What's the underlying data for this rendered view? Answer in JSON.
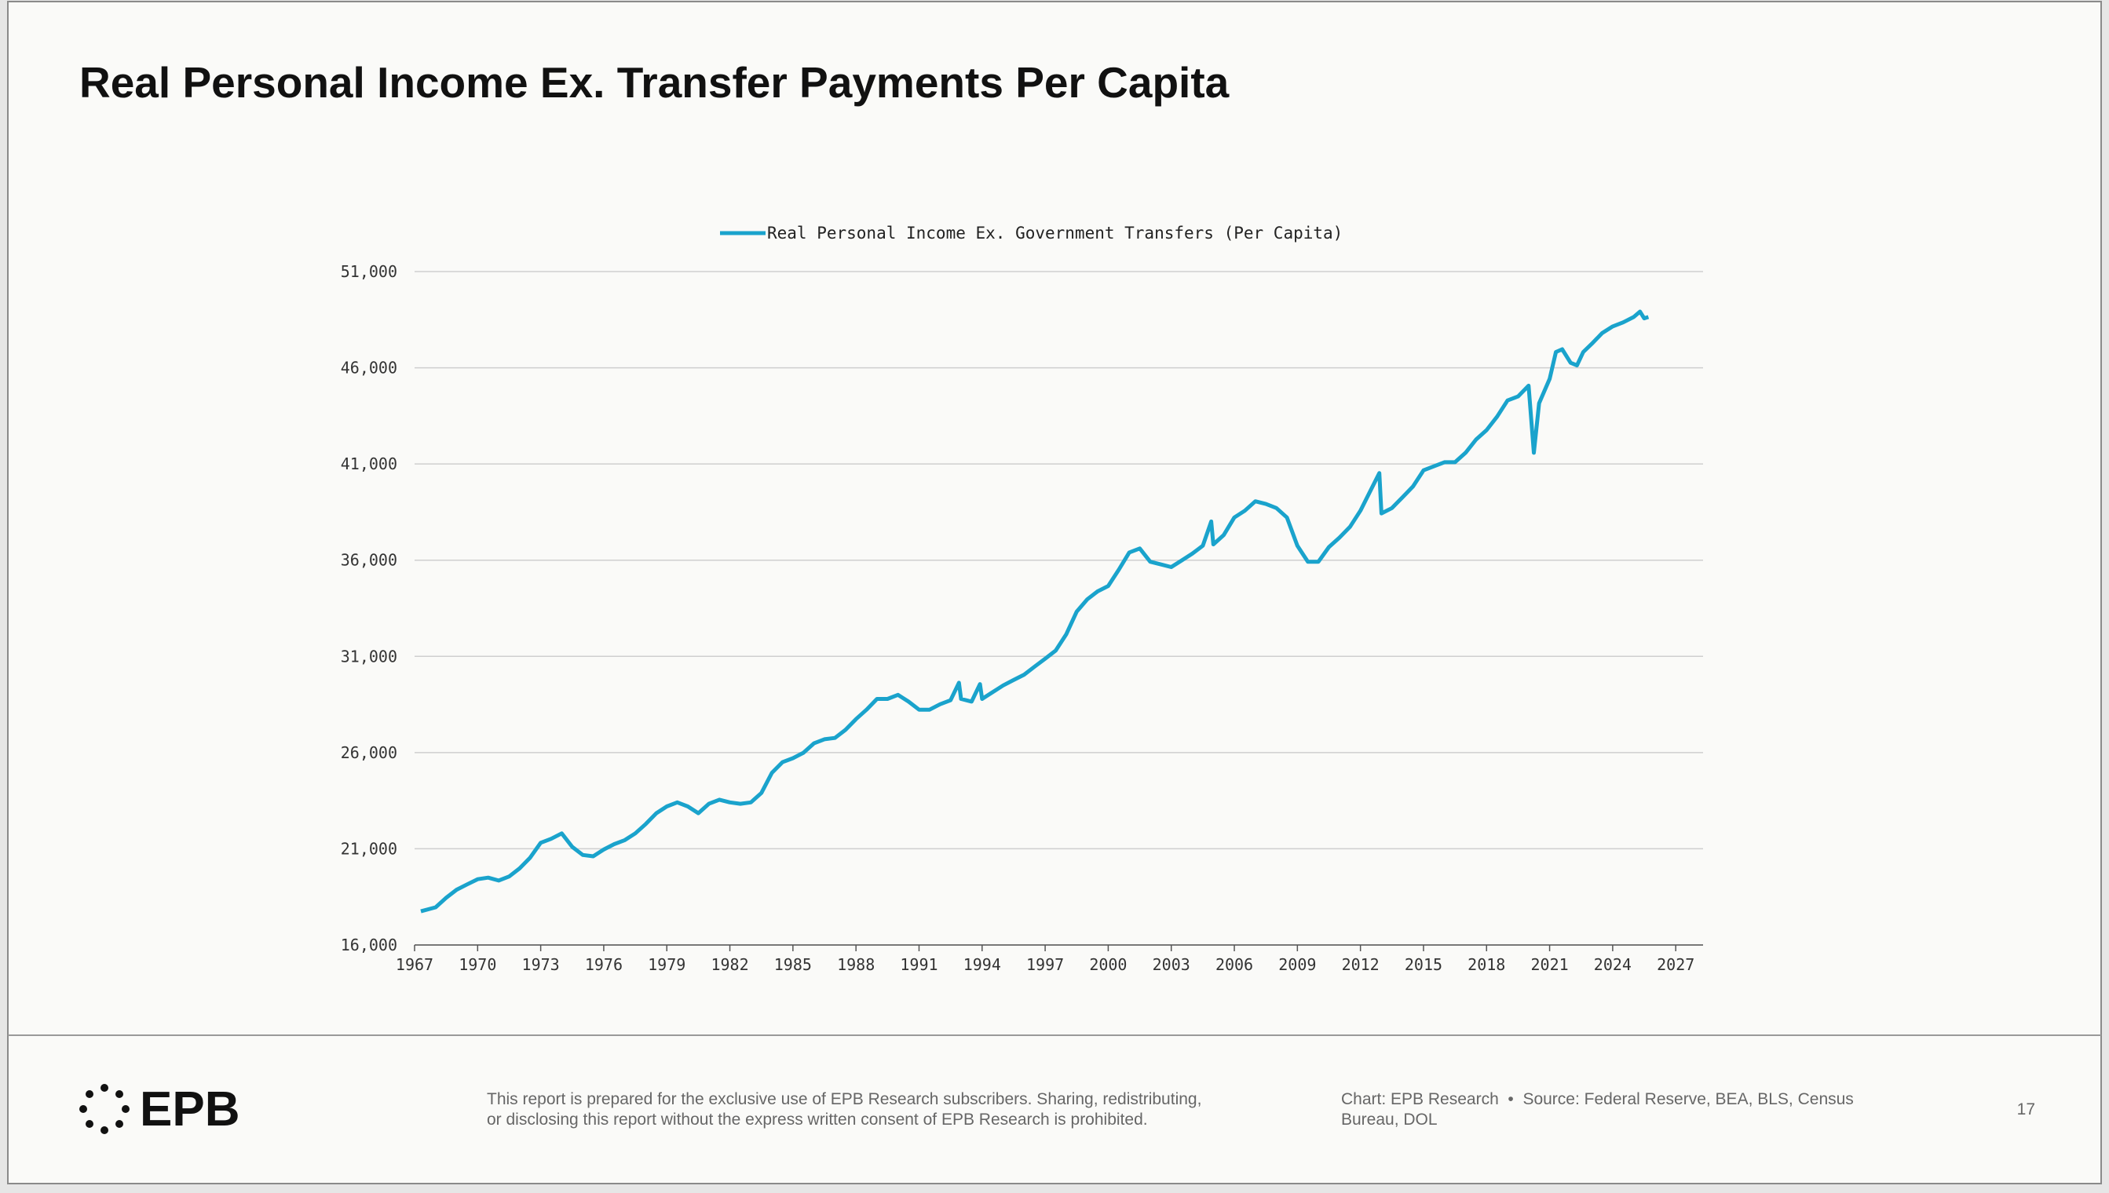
{
  "chart_data": {
    "type": "line",
    "title": "Real Personal Income Ex. Transfer Payments Per Capita",
    "x": [
      1967.3,
      1968,
      1968.5,
      1969,
      1969.5,
      1970,
      1970.5,
      1971,
      1971.5,
      1972,
      1972.5,
      1973,
      1973.5,
      1974,
      1974.5,
      1975,
      1975.5,
      1976,
      1976.5,
      1977,
      1977.5,
      1978,
      1978.5,
      1979,
      1979.5,
      1980,
      1980.5,
      1981,
      1981.5,
      1982,
      1982.5,
      1983,
      1983.5,
      1984,
      1984.5,
      1985,
      1985.5,
      1986,
      1986.5,
      1987,
      1987.5,
      1988,
      1988.5,
      1989,
      1989.5,
      1990,
      1990.5,
      1991,
      1991.5,
      1992,
      1992.5,
      1992.9,
      1993,
      1993.5,
      1993.9,
      1994,
      1994.5,
      1995,
      1995.5,
      1996,
      1996.5,
      1997,
      1997.5,
      1998,
      1998.5,
      1999,
      1999.5,
      2000,
      2000.5,
      2001,
      2001.5,
      2002,
      2002.5,
      2003,
      2003.5,
      2004,
      2004.5,
      2004.9,
      2005,
      2005.5,
      2006,
      2006.5,
      2007,
      2007.5,
      2008,
      2008.5,
      2009,
      2009.5,
      2010,
      2010.5,
      2011,
      2011.5,
      2012,
      2012.9,
      2013,
      2013.5,
      2014,
      2014.5,
      2015,
      2015.5,
      2016,
      2016.5,
      2017,
      2017.5,
      2018,
      2018.5,
      2019,
      2019.5,
      2020,
      2020.25,
      2020.5,
      2021,
      2021.3,
      2021.6,
      2022,
      2022.3,
      2022.6,
      2023,
      2023.5,
      2024,
      2024.5,
      2025,
      2025.3,
      2025.5,
      2025.7
    ],
    "series": [
      {
        "name": "Real Personal Income Ex. Government Transfers (Per Capita)",
        "color": "#1aa3cc",
        "values": [
          17750,
          17960,
          18450,
          18870,
          19150,
          19420,
          19500,
          19350,
          19560,
          19980,
          20540,
          21310,
          21520,
          21800,
          21100,
          20680,
          20610,
          20960,
          21240,
          21450,
          21800,
          22290,
          22850,
          23200,
          23410,
          23200,
          22850,
          23340,
          23550,
          23410,
          23340,
          23410,
          23900,
          24950,
          25500,
          25710,
          25990,
          26480,
          26690,
          26760,
          27180,
          27740,
          28230,
          28790,
          28790,
          29000,
          28650,
          28230,
          28230,
          28510,
          28720,
          29630,
          28790,
          28650,
          29560,
          28790,
          29140,
          29490,
          29770,
          30050,
          30470,
          30880,
          31300,
          32140,
          33330,
          33960,
          34380,
          34660,
          35500,
          36400,
          36610,
          35920,
          35780,
          35640,
          35990,
          36340,
          36750,
          38010,
          36820,
          37310,
          38220,
          38570,
          39060,
          38920,
          38710,
          38220,
          36750,
          35920,
          35920,
          36680,
          37170,
          37730,
          38570,
          40530,
          38430,
          38710,
          39270,
          39830,
          40670,
          40880,
          41090,
          41090,
          41580,
          42270,
          42760,
          43460,
          44300,
          44510,
          45070,
          41580,
          44160,
          45420,
          46820,
          46960,
          46260,
          46120,
          46820,
          47240,
          47800,
          48150,
          48360,
          48640,
          48920,
          48570,
          48640
        ]
      }
    ],
    "xlim": [
      1967,
      2028.3
    ],
    "xticks": [
      1967,
      1970,
      1973,
      1976,
      1979,
      1982,
      1985,
      1988,
      1991,
      1994,
      1997,
      2000,
      2003,
      2006,
      2009,
      2012,
      2015,
      2018,
      2021,
      2024,
      2027
    ],
    "ylim": [
      16000,
      51000
    ],
    "yticks": [
      {
        "value": 16000,
        "label": "16,000"
      },
      {
        "value": 21000,
        "label": "21,000"
      },
      {
        "value": 26000,
        "label": "26,000"
      },
      {
        "value": 31000,
        "label": "31,000"
      },
      {
        "value": 36000,
        "label": "36,000"
      },
      {
        "value": 41000,
        "label": "41,000"
      },
      {
        "value": 46000,
        "label": "46,000"
      },
      {
        "value": 51000,
        "label": "51,000"
      }
    ],
    "grid": true,
    "legend": "top"
  },
  "footer": {
    "logo": "EPB",
    "disclaimer": [
      "This report is prepared for the exclusive use of EPB Research subscribers. Sharing, redistributing,",
      "or disclosing this report without the express written consent of EPB Research is prohibited."
    ],
    "source": [
      "Chart: EPB Research  •  Source: Federal Reserve, BEA, BLS, Census",
      "Bureau, DOL"
    ],
    "page": "17"
  }
}
